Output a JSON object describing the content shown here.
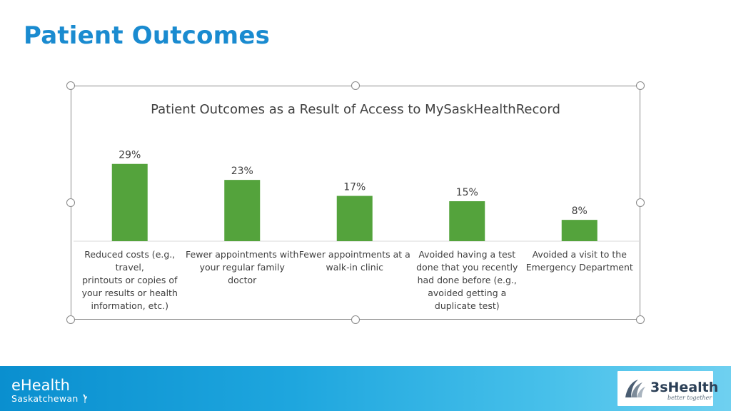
{
  "slide": {
    "title": "Patient Outcomes"
  },
  "chart_data": {
    "type": "bar",
    "title": "Patient Outcomes as a Result of Access to MySaskHealthRecord",
    "categories": [
      [
        "Reduced costs (e.g., travel,",
        "printouts or copies of",
        "your results or health",
        "information, etc.)"
      ],
      [
        "Fewer appointments with",
        "your regular family doctor"
      ],
      [
        "Fewer appointments at a",
        "walk-in clinic"
      ],
      [
        "Avoided having a test",
        "done that you recently",
        "had done before (e.g.,",
        "avoided getting a",
        "duplicate test)"
      ],
      [
        "Avoided a visit to the",
        "Emergency Department"
      ]
    ],
    "values": [
      29,
      23,
      17,
      15,
      8
    ],
    "data_labels": [
      "29%",
      "23%",
      "17%",
      "15%",
      "8%"
    ],
    "ylim": [
      0,
      30
    ],
    "grid": false,
    "bar_color": "#54a33c",
    "xlabel": "",
    "ylabel": ""
  },
  "footer": {
    "brand": "eHealth",
    "brand_sub": "Saskatchewan",
    "partner_name": "3sHealth",
    "partner_tagline": "better together",
    "gradient_start": "#0a8fcf",
    "gradient_end": "#6fd0f0"
  }
}
